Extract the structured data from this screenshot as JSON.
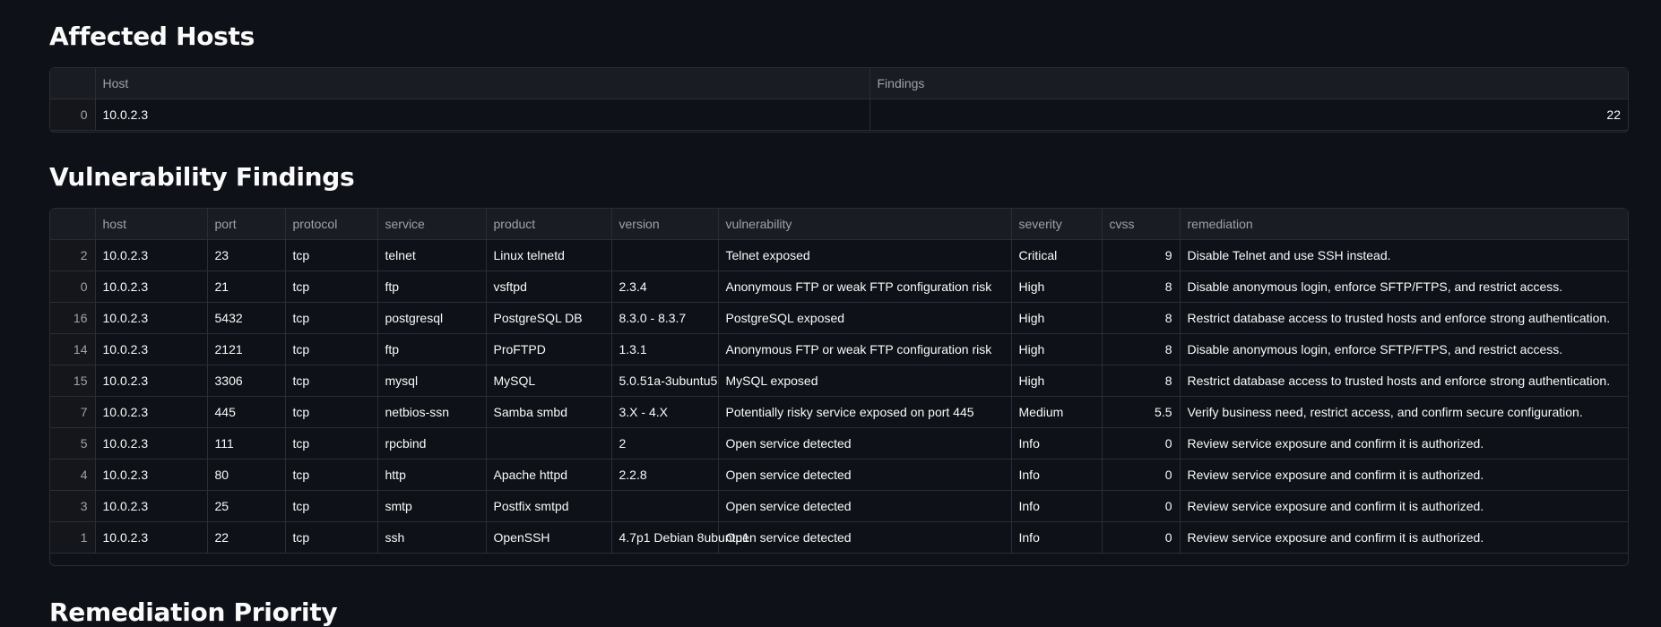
{
  "sections": {
    "hosts_title": "Affected Hosts",
    "findings_title": "Vulnerability Findings",
    "priority_title": "Remediation Priority"
  },
  "hosts_table": {
    "columns": [
      "",
      "Host",
      "Findings"
    ],
    "rows": [
      {
        "index": "0",
        "host": "10.0.2.3",
        "findings": "22"
      }
    ]
  },
  "findings_table": {
    "columns": [
      "",
      "host",
      "port",
      "protocol",
      "service",
      "product",
      "version",
      "vulnerability",
      "severity",
      "cvss",
      "remediation"
    ],
    "rows": [
      {
        "index": "2",
        "host": "10.0.2.3",
        "port": "23",
        "protocol": "tcp",
        "service": "telnet",
        "product": "Linux telnetd",
        "version": "",
        "vulnerability": "Telnet exposed",
        "severity": "Critical",
        "cvss": "9",
        "remediation": "Disable Telnet and use SSH instead."
      },
      {
        "index": "0",
        "host": "10.0.2.3",
        "port": "21",
        "protocol": "tcp",
        "service": "ftp",
        "product": "vsftpd",
        "version": "2.3.4",
        "vulnerability": "Anonymous FTP or weak FTP configuration risk",
        "severity": "High",
        "cvss": "8",
        "remediation": "Disable anonymous login, enforce SFTP/FTPS, and restrict access."
      },
      {
        "index": "16",
        "host": "10.0.2.3",
        "port": "5432",
        "protocol": "tcp",
        "service": "postgresql",
        "product": "PostgreSQL DB",
        "version": "8.3.0 - 8.3.7",
        "vulnerability": "PostgreSQL exposed",
        "severity": "High",
        "cvss": "8",
        "remediation": "Restrict database access to trusted hosts and enforce strong authentication."
      },
      {
        "index": "14",
        "host": "10.0.2.3",
        "port": "2121",
        "protocol": "tcp",
        "service": "ftp",
        "product": "ProFTPD",
        "version": "1.3.1",
        "vulnerability": "Anonymous FTP or weak FTP configuration risk",
        "severity": "High",
        "cvss": "8",
        "remediation": "Disable anonymous login, enforce SFTP/FTPS, and restrict access."
      },
      {
        "index": "15",
        "host": "10.0.2.3",
        "port": "3306",
        "protocol": "tcp",
        "service": "mysql",
        "product": "MySQL",
        "version": "5.0.51a-3ubuntu5",
        "vulnerability": "MySQL exposed",
        "severity": "High",
        "cvss": "8",
        "remediation": "Restrict database access to trusted hosts and enforce strong authentication."
      },
      {
        "index": "7",
        "host": "10.0.2.3",
        "port": "445",
        "protocol": "tcp",
        "service": "netbios-ssn",
        "product": "Samba smbd",
        "version": "3.X - 4.X",
        "vulnerability": "Potentially risky service exposed on port 445",
        "severity": "Medium",
        "cvss": "5.5",
        "remediation": "Verify business need, restrict access, and confirm secure configuration."
      },
      {
        "index": "5",
        "host": "10.0.2.3",
        "port": "111",
        "protocol": "tcp",
        "service": "rpcbind",
        "product": "",
        "version": "2",
        "vulnerability": "Open service detected",
        "severity": "Info",
        "cvss": "0",
        "remediation": "Review service exposure and confirm it is authorized."
      },
      {
        "index": "4",
        "host": "10.0.2.3",
        "port": "80",
        "protocol": "tcp",
        "service": "http",
        "product": "Apache httpd",
        "version": "2.2.8",
        "vulnerability": "Open service detected",
        "severity": "Info",
        "cvss": "0",
        "remediation": "Review service exposure and confirm it is authorized."
      },
      {
        "index": "3",
        "host": "10.0.2.3",
        "port": "25",
        "protocol": "tcp",
        "service": "smtp",
        "product": "Postfix smtpd",
        "version": "",
        "vulnerability": "Open service detected",
        "severity": "Info",
        "cvss": "0",
        "remediation": "Review service exposure and confirm it is authorized."
      },
      {
        "index": "1",
        "host": "10.0.2.3",
        "port": "22",
        "protocol": "tcp",
        "service": "ssh",
        "product": "OpenSSH",
        "version": "4.7p1 Debian 8ubuntu1",
        "vulnerability": "Open service detected",
        "severity": "Info",
        "cvss": "0",
        "remediation": "Review service exposure and confirm it is authorized."
      }
    ]
  },
  "colors": {
    "background": "#0e1117",
    "header_bg": "#1a1c23",
    "border": "#2a2d36",
    "text": "#fafafa",
    "muted_text": "#9da2ab"
  }
}
